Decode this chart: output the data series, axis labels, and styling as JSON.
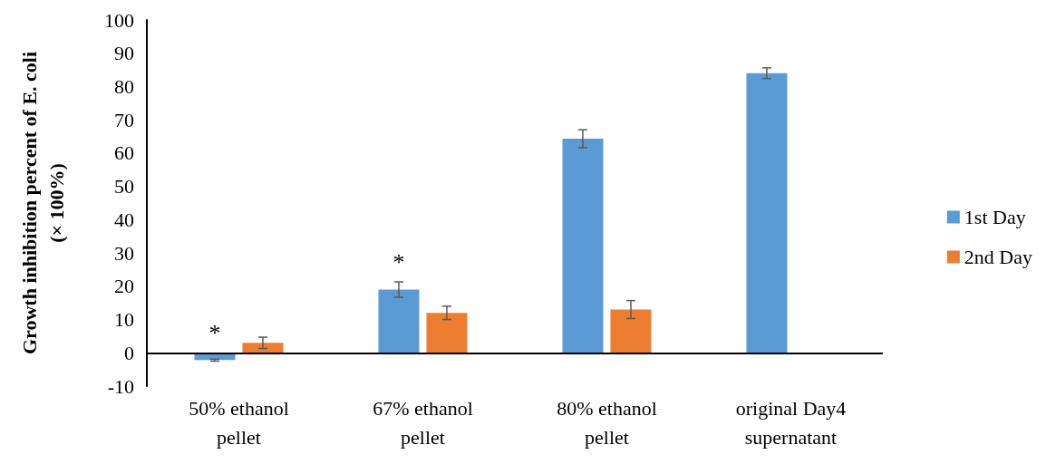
{
  "chart_data": {
    "type": "bar",
    "ylabel": "Growth inhibition percent of E. coli\n(× 100%)",
    "categories": [
      "50% ethanol\npellet",
      "67% ethanol\npellet",
      "80% ethanol\npellet",
      "original Day4\nsupernatant"
    ],
    "series": [
      {
        "name": "1st Day",
        "color": "#5b9bd5",
        "values": [
          -2.2,
          19,
          64.3,
          84
        ],
        "errors": [
          0.3,
          2.3,
          2.7,
          1.6
        ]
      },
      {
        "name": "2nd Day",
        "color": "#ed7d31",
        "values": [
          3,
          12,
          13,
          null
        ],
        "errors": [
          1.7,
          2,
          2.7,
          null
        ]
      }
    ],
    "ylim": [
      -10,
      100
    ],
    "yticks": [
      -10,
      0,
      10,
      20,
      30,
      40,
      50,
      60,
      70,
      80,
      90,
      100
    ],
    "annotations": [
      "*",
      "*"
    ],
    "grid": false,
    "legend": "right"
  }
}
